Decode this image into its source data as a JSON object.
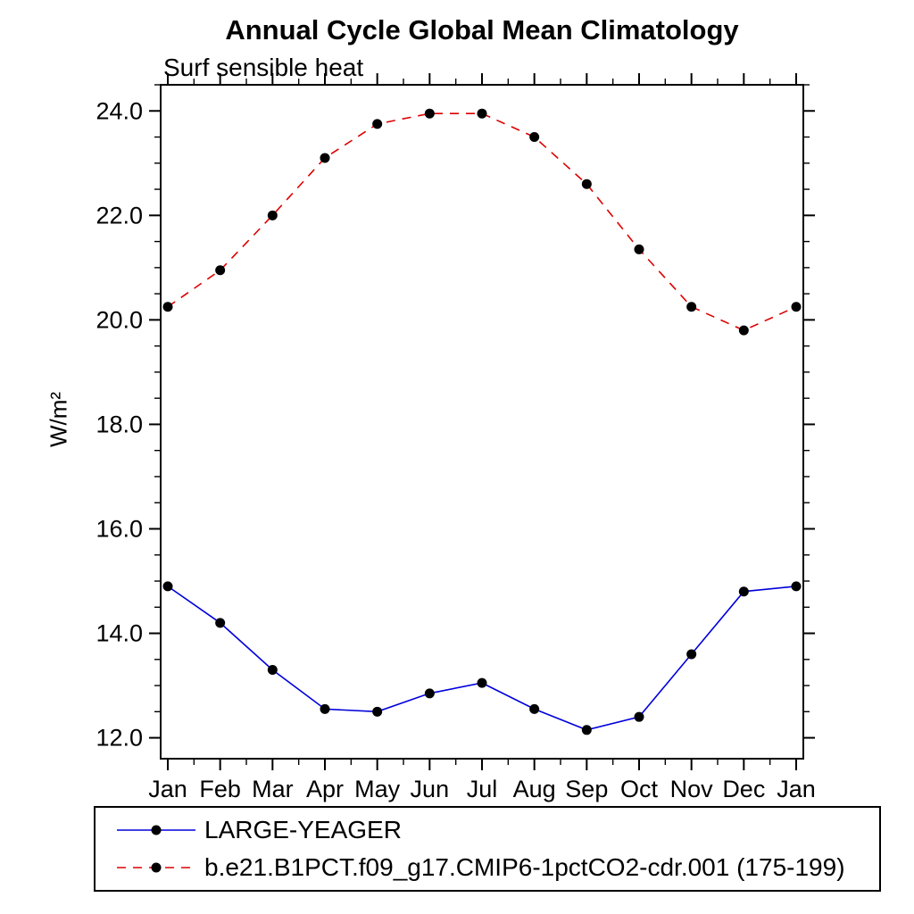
{
  "chart_data": {
    "type": "line",
    "title": "Annual Cycle Global Mean Climatology",
    "subtitle": "Surf sensible heat",
    "xlabel": "",
    "ylabel": "W/m²",
    "categories": [
      "Jan",
      "Feb",
      "Mar",
      "Apr",
      "May",
      "Jun",
      "Jul",
      "Aug",
      "Sep",
      "Oct",
      "Nov",
      "Dec",
      "Jan"
    ],
    "ylim": [
      11.6,
      24.5
    ],
    "yticks": [
      12.0,
      14.0,
      16.0,
      18.0,
      20.0,
      22.0,
      24.0
    ],
    "ytick_labels": [
      "12.0",
      "14.0",
      "16.0",
      "18.0",
      "20.0",
      "22.0",
      "24.0"
    ],
    "minor_tick_interval": 0.5,
    "grid": false,
    "legend_position": "bottom",
    "frame_color": "#000000",
    "marker_color": "#000000",
    "series": [
      {
        "name": "LARGE-YEAGER",
        "color": "#0000dd",
        "style": "solid",
        "marker": "black-dot",
        "values": [
          14.9,
          14.2,
          13.3,
          12.55,
          12.5,
          12.85,
          13.05,
          12.55,
          12.15,
          12.4,
          13.6,
          14.8,
          14.9
        ]
      },
      {
        "name": "b.e21.B1PCT.f09_g17.CMIP6-1pctCO2-cdr.001 (175-199)",
        "color": "#dd0000",
        "style": "dashed",
        "marker": "black-dot",
        "values": [
          20.25,
          20.95,
          22.0,
          23.1,
          23.75,
          23.95,
          23.95,
          23.5,
          22.6,
          21.35,
          20.25,
          19.8,
          20.25
        ]
      }
    ]
  }
}
